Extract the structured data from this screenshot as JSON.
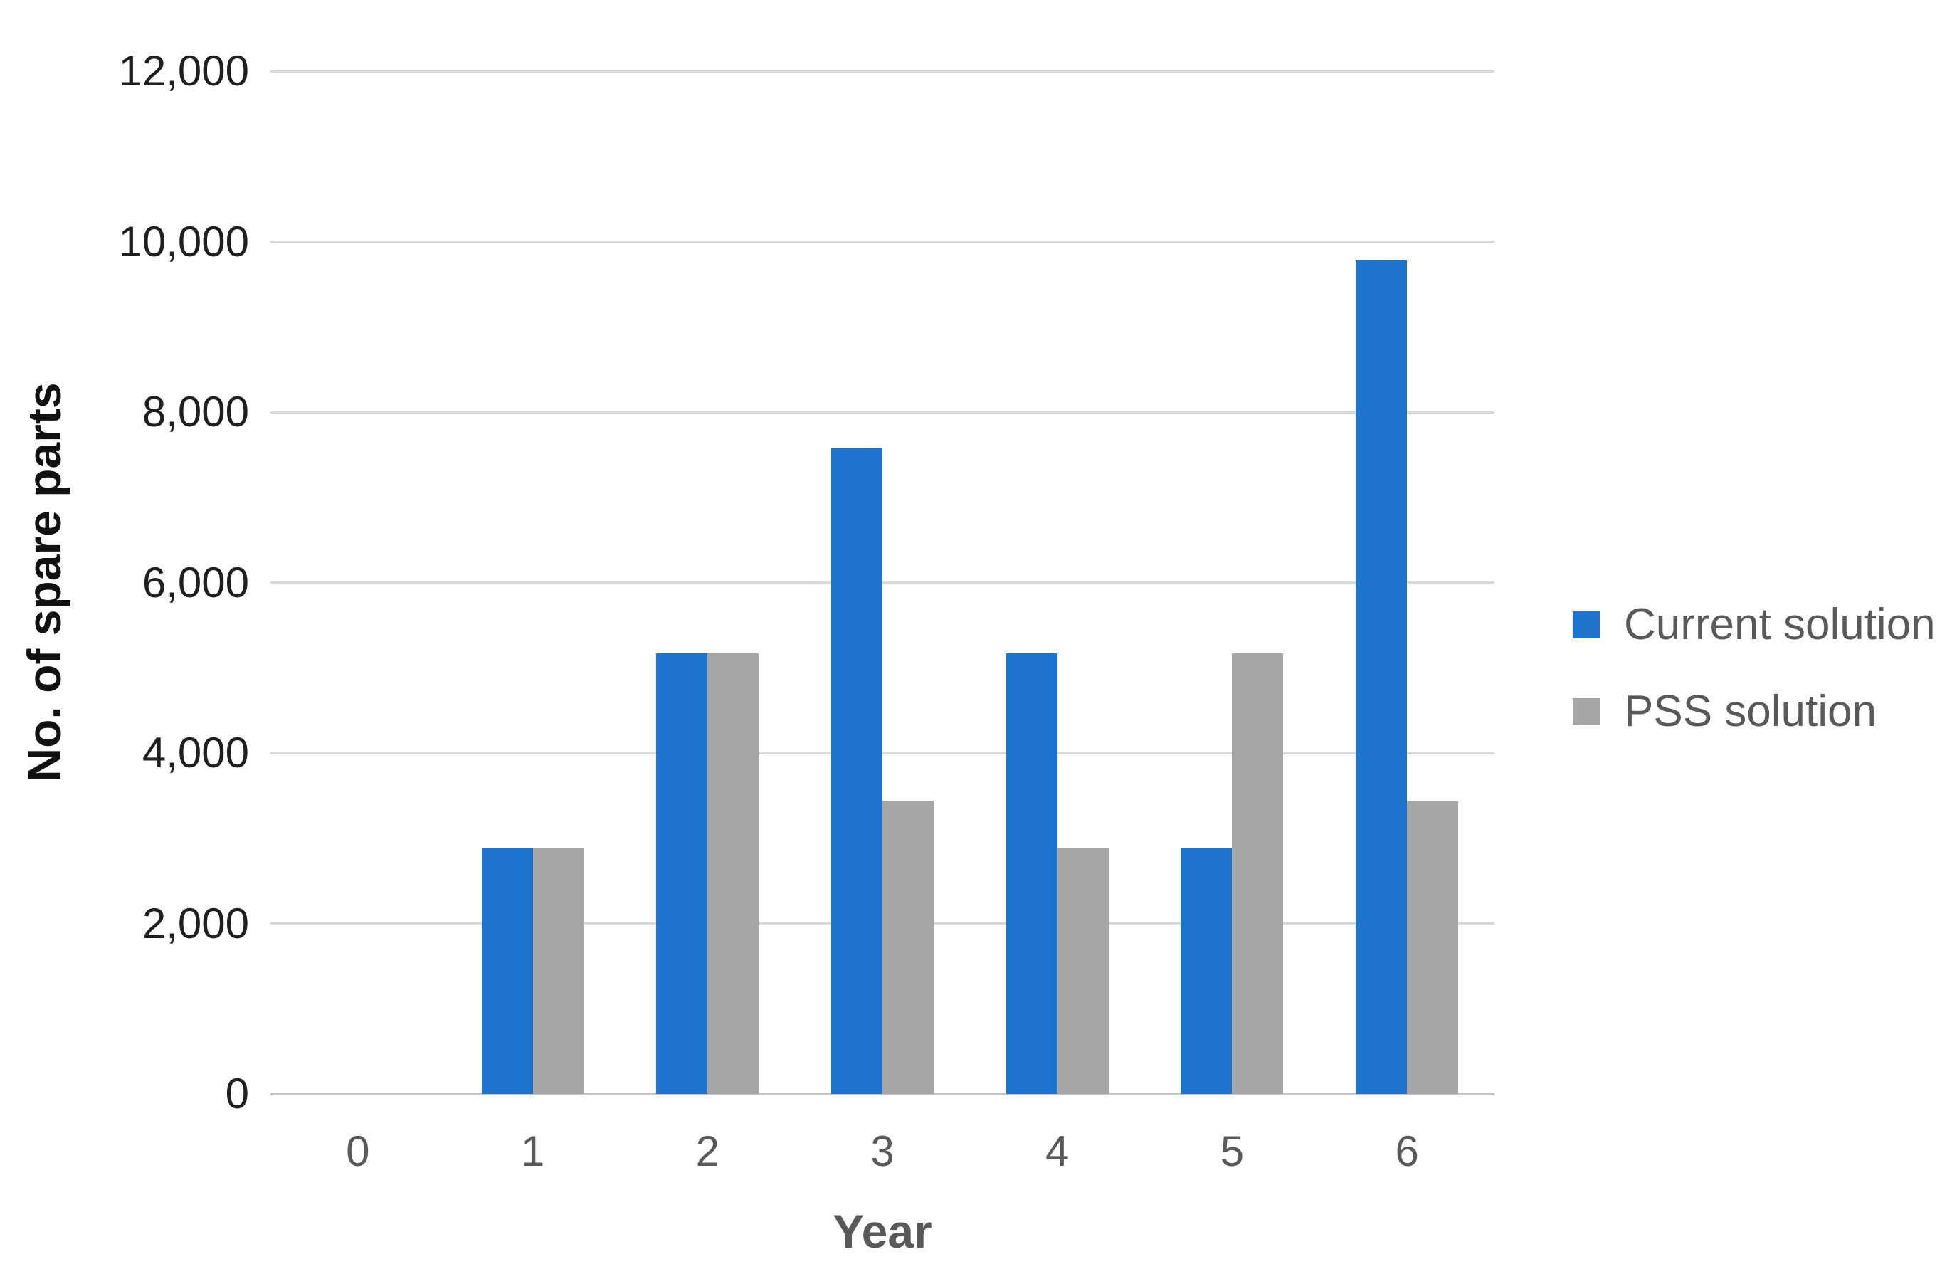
{
  "chart_data": {
    "type": "bar",
    "title": "",
    "categories": [
      "0",
      "1",
      "2",
      "3",
      "4",
      "5",
      "6"
    ],
    "series": [
      {
        "name": "Current solution",
        "color": "#1E73CD",
        "values": [
          null,
          2880,
          5170,
          7570,
          5170,
          2880,
          9780
        ]
      },
      {
        "name": "PSS solution",
        "color": "#A5A5A5",
        "values": [
          null,
          2880,
          5170,
          3430,
          2880,
          5170,
          3430
        ]
      }
    ],
    "xlabel": "Year",
    "ylabel": "No. of spare parts",
    "ylim": [
      0,
      12000
    ],
    "ytick_step": 2000,
    "ytick_labels": [
      "0",
      "2,000",
      "4,000",
      "6,000",
      "8,000",
      "10,000",
      "12,000"
    ],
    "grid": true,
    "legend_position": "right"
  },
  "colors": {
    "background": "#FFFFFF",
    "gridline": "#D9D9D9",
    "axis_line": "#C4C4C4",
    "y_tick_label": "#1F1F1F",
    "x_tick_label": "#595959",
    "y_axis_title": "#1A1A1A",
    "x_axis_title": "#595959",
    "legend_text": "#595959"
  }
}
